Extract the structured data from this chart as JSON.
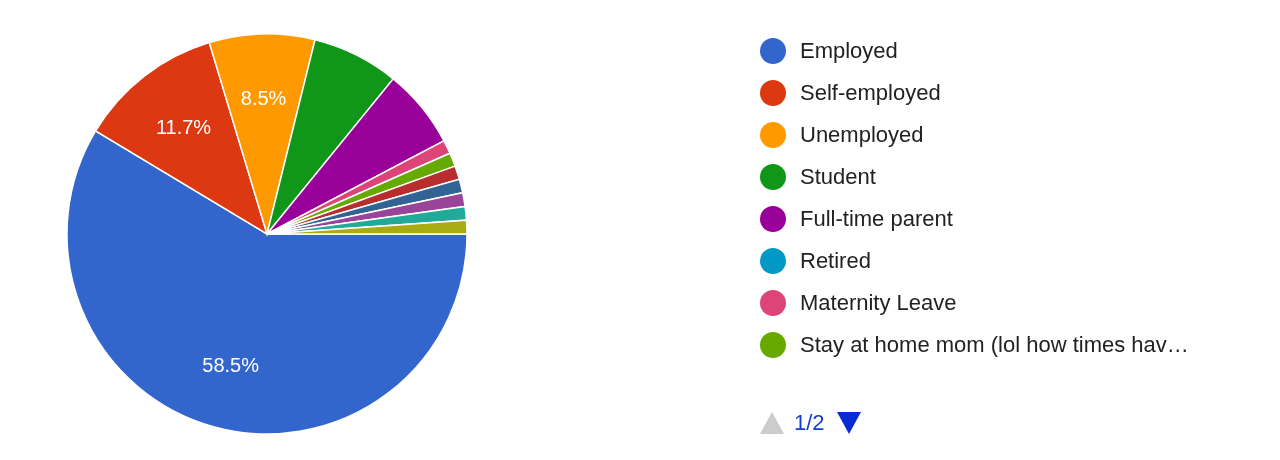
{
  "chart_data": {
    "type": "pie",
    "categories": [
      "Employed",
      "Self-employed",
      "Unemployed",
      "Student",
      "Full-time parent",
      "Retired",
      "Maternity Leave",
      "Stay at home mom (lol how times hav…",
      null,
      null,
      null,
      null,
      null
    ],
    "values": [
      58.5,
      11.7,
      8.5,
      7,
      6.4,
      null,
      1.1,
      1.1,
      1.1,
      1.1,
      1.1,
      1.1,
      1.1
    ],
    "colors": [
      "#3366cc",
      "#dc3912",
      "#ff9900",
      "#109618",
      "#990099",
      "#0099c6",
      "#dd4477",
      "#66aa00",
      "#b82e2e",
      "#316395",
      "#994499",
      "#22aa99",
      "#aaaa11"
    ],
    "value_labels": [
      "58.5%",
      "11.7%",
      "8.5%",
      null,
      null,
      null,
      null,
      null,
      null,
      null,
      null,
      null,
      null
    ],
    "legend": "right",
    "annotations": [
      "1/2"
    ]
  }
}
